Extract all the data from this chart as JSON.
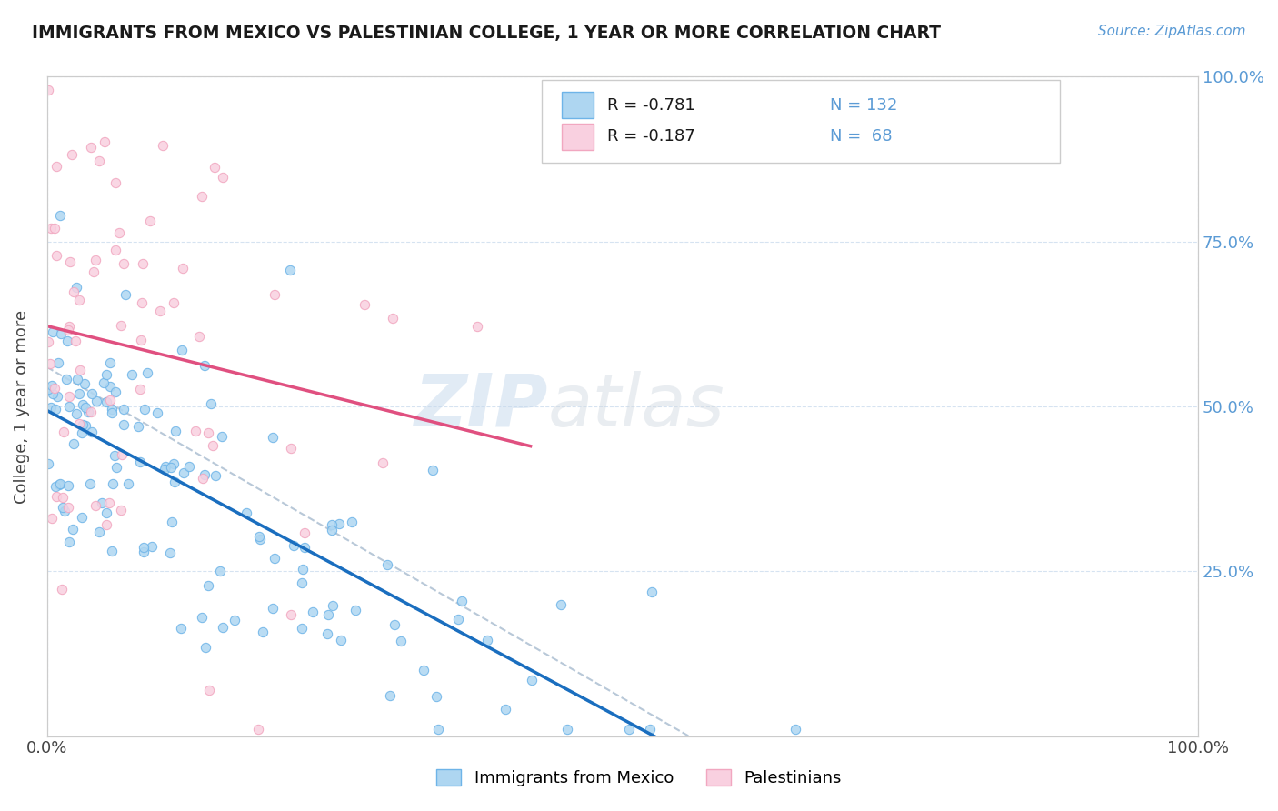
{
  "title": "IMMIGRANTS FROM MEXICO VS PALESTINIAN COLLEGE, 1 YEAR OR MORE CORRELATION CHART",
  "source": "Source: ZipAtlas.com",
  "ylabel": "College, 1 year or more",
  "watermark_zip": "ZIP",
  "watermark_atlas": "atlas",
  "legend_r1": "-0.781",
  "legend_n1": "132",
  "legend_r2": "-0.187",
  "legend_n2": " 68",
  "color_mexico": "#6EB4E8",
  "color_mexico_fill": "#AED6F1",
  "color_palestinian": "#F1A7C0",
  "color_palestinian_fill": "#F9D0E0",
  "color_regression_mexico": "#1A6EBF",
  "color_regression_palestinian": "#E05080",
  "color_regression_dashed": "#B8C8D8",
  "legend_label1": "Immigrants from Mexico",
  "legend_label2": "Palestinians"
}
